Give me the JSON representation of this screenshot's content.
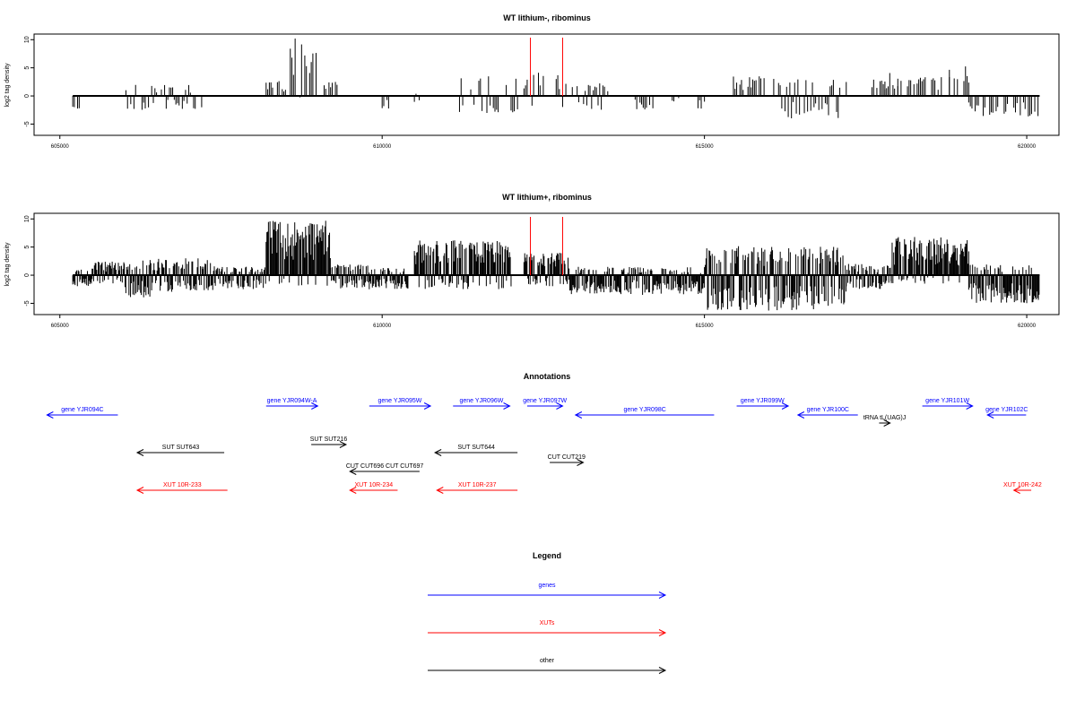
{
  "chart_data": [
    {
      "type": "bar",
      "title": "WT lithium-, ribominus",
      "xlabel": "",
      "ylabel": "log2 tag density",
      "xlim": [
        604600,
        620500
      ],
      "ylim": [
        -7,
        11
      ],
      "x_ticks": [
        605000,
        610000,
        615000,
        620000
      ],
      "y_ticks": [
        -5,
        0,
        5,
        10
      ],
      "baseline_range": [
        605200,
        620200
      ],
      "markers": [
        612300,
        612800
      ],
      "marker_color": "#ff0000",
      "bar_color": "#000000",
      "regions": [
        {
          "from": 605200,
          "to": 605300,
          "min": -2.5,
          "max": 0
        },
        {
          "from": 606000,
          "to": 607200,
          "min": -2.5,
          "max": 2.2
        },
        {
          "from": 608200,
          "to": 608500,
          "min": 0,
          "max": 3
        },
        {
          "from": 608500,
          "to": 609000,
          "min": -0.5,
          "max": 10.3
        },
        {
          "from": 609100,
          "to": 609300,
          "min": 0,
          "max": 2.5
        },
        {
          "from": 610000,
          "to": 610100,
          "min": -2.5,
          "max": 0
        },
        {
          "from": 610500,
          "to": 610600,
          "min": -1.5,
          "max": 1
        },
        {
          "from": 611200,
          "to": 612100,
          "min": -3.5,
          "max": 3.5
        },
        {
          "from": 612200,
          "to": 612800,
          "min": -2,
          "max": 4.5
        },
        {
          "from": 612800,
          "to": 613500,
          "min": -2.5,
          "max": 2.5
        },
        {
          "from": 613900,
          "to": 614200,
          "min": -2.5,
          "max": 0
        },
        {
          "from": 614500,
          "to": 614600,
          "min": -1,
          "max": 0
        },
        {
          "from": 614900,
          "to": 615000,
          "min": -3,
          "max": 0
        },
        {
          "from": 615400,
          "to": 616200,
          "min": 0,
          "max": 3.7
        },
        {
          "from": 616200,
          "to": 617200,
          "min": -4,
          "max": 3
        },
        {
          "from": 617600,
          "to": 617800,
          "min": 0,
          "max": 3
        },
        {
          "from": 617800,
          "to": 618000,
          "min": 0,
          "max": 4.5
        },
        {
          "from": 618000,
          "to": 618800,
          "min": 0,
          "max": 4
        },
        {
          "from": 618800,
          "to": 619100,
          "min": 0,
          "max": 5.8
        },
        {
          "from": 619100,
          "to": 620200,
          "min": -3.7,
          "max": 0
        }
      ]
    },
    {
      "type": "bar",
      "title": "WT lithium+, ribominus",
      "xlabel": "",
      "ylabel": "log2 tag density",
      "xlim": [
        604600,
        620500
      ],
      "ylim": [
        -7,
        11
      ],
      "x_ticks": [
        605000,
        610000,
        615000,
        620000
      ],
      "y_ticks": [
        -5,
        0,
        5,
        10
      ],
      "baseline_range": [
        605200,
        620200
      ],
      "markers": [
        612300,
        612800
      ],
      "marker_color": "#ff0000",
      "bar_color": "#000000",
      "regions": [
        {
          "from": 605200,
          "to": 605500,
          "min": -2,
          "max": 1
        },
        {
          "from": 605500,
          "to": 606000,
          "min": -1.5,
          "max": 2.5
        },
        {
          "from": 606000,
          "to": 606400,
          "min": -4,
          "max": 2.8
        },
        {
          "from": 606400,
          "to": 607400,
          "min": -3,
          "max": 3
        },
        {
          "from": 607400,
          "to": 608200,
          "min": -2.5,
          "max": 1.5
        },
        {
          "from": 608200,
          "to": 609200,
          "min": -2,
          "max": 9.8
        },
        {
          "from": 609200,
          "to": 609800,
          "min": -2.5,
          "max": 2
        },
        {
          "from": 609800,
          "to": 610400,
          "min": -2.5,
          "max": 1.5
        },
        {
          "from": 610500,
          "to": 612000,
          "min": -2.5,
          "max": 6.2
        },
        {
          "from": 612200,
          "to": 612900,
          "min": -2,
          "max": 4
        },
        {
          "from": 612900,
          "to": 615000,
          "min": -3.5,
          "max": 1.5
        },
        {
          "from": 615000,
          "to": 617200,
          "min": -6.3,
          "max": 5.2
        },
        {
          "from": 617200,
          "to": 617900,
          "min": -2.5,
          "max": 2
        },
        {
          "from": 617900,
          "to": 619100,
          "min": -1.5,
          "max": 6.8
        },
        {
          "from": 619100,
          "to": 620200,
          "min": -5,
          "max": 2
        }
      ]
    },
    {
      "type": "other",
      "title": "Annotations",
      "xlim": [
        604600,
        620500
      ],
      "features": [
        {
          "label": "gene YJR094C",
          "category": "gene",
          "start": 604800,
          "end": 605900,
          "strand": "-",
          "row": 0
        },
        {
          "label": "gene YJR094W-A",
          "category": "gene",
          "start": 608200,
          "end": 609000,
          "strand": "+",
          "row": 1
        },
        {
          "label": "gene YJR095W",
          "category": "gene",
          "start": 609800,
          "end": 610750,
          "strand": "+",
          "row": 1
        },
        {
          "label": "gene YJR096W",
          "category": "gene",
          "start": 611100,
          "end": 611980,
          "strand": "+",
          "row": 1
        },
        {
          "label": "gene YJR097W",
          "category": "gene",
          "start": 612250,
          "end": 612800,
          "strand": "+",
          "row": 1
        },
        {
          "label": "gene YJR098C",
          "category": "gene",
          "start": 613000,
          "end": 615150,
          "strand": "-",
          "row": 0
        },
        {
          "label": "gene YJR099W",
          "category": "gene",
          "start": 615500,
          "end": 616300,
          "strand": "+",
          "row": 1
        },
        {
          "label": "gene YJR100C",
          "category": "gene",
          "start": 616450,
          "end": 617380,
          "strand": "-",
          "row": 0
        },
        {
          "label": "tRNA tL(UAG)J",
          "category": "other",
          "start": 617710,
          "end": 617880,
          "strand": "+",
          "row": 2
        },
        {
          "label": "gene YJR101W",
          "category": "gene",
          "start": 618380,
          "end": 619160,
          "strand": "+",
          "row": 1
        },
        {
          "label": "gene YJR102C",
          "category": "gene",
          "start": 619390,
          "end": 619990,
          "strand": "-",
          "row": 0
        },
        {
          "label": "SUT SUT643",
          "category": "other",
          "start": 606200,
          "end": 607550,
          "strand": "-",
          "row": 3
        },
        {
          "label": "SUT SUT216",
          "category": "other",
          "start": 608900,
          "end": 609440,
          "strand": "+",
          "row": 4
        },
        {
          "label": "SUT SUT644",
          "category": "other",
          "start": 610820,
          "end": 612100,
          "strand": "-",
          "row": 3
        },
        {
          "label": "CUT CUT219",
          "category": "other",
          "start": 612600,
          "end": 613120,
          "strand": "+",
          "row": 5
        },
        {
          "label": "CUT CUT696 CUT CUT697",
          "category": "other",
          "start": 609500,
          "end": 610580,
          "strand": "-",
          "row": 6
        },
        {
          "label": "XUT 10R-233",
          "category": "xut",
          "start": 606200,
          "end": 607600,
          "strand": "-",
          "row": 7
        },
        {
          "label": "XUT 10R-234",
          "category": "xut",
          "start": 609500,
          "end": 610240,
          "strand": "-",
          "row": 7
        },
        {
          "label": "XUT 10R-237",
          "category": "xut",
          "start": 610850,
          "end": 612100,
          "strand": "-",
          "row": 7
        },
        {
          "label": "XUT 10R-242",
          "category": "xut",
          "start": 619800,
          "end": 620070,
          "strand": "-",
          "row": 7
        }
      ]
    },
    {
      "type": "legend",
      "title": "Legend",
      "entries": [
        {
          "label": "genes",
          "color": "#0000ff"
        },
        {
          "label": "XUTs",
          "color": "#ff0000"
        },
        {
          "label": "other",
          "color": "#000000"
        }
      ]
    }
  ]
}
